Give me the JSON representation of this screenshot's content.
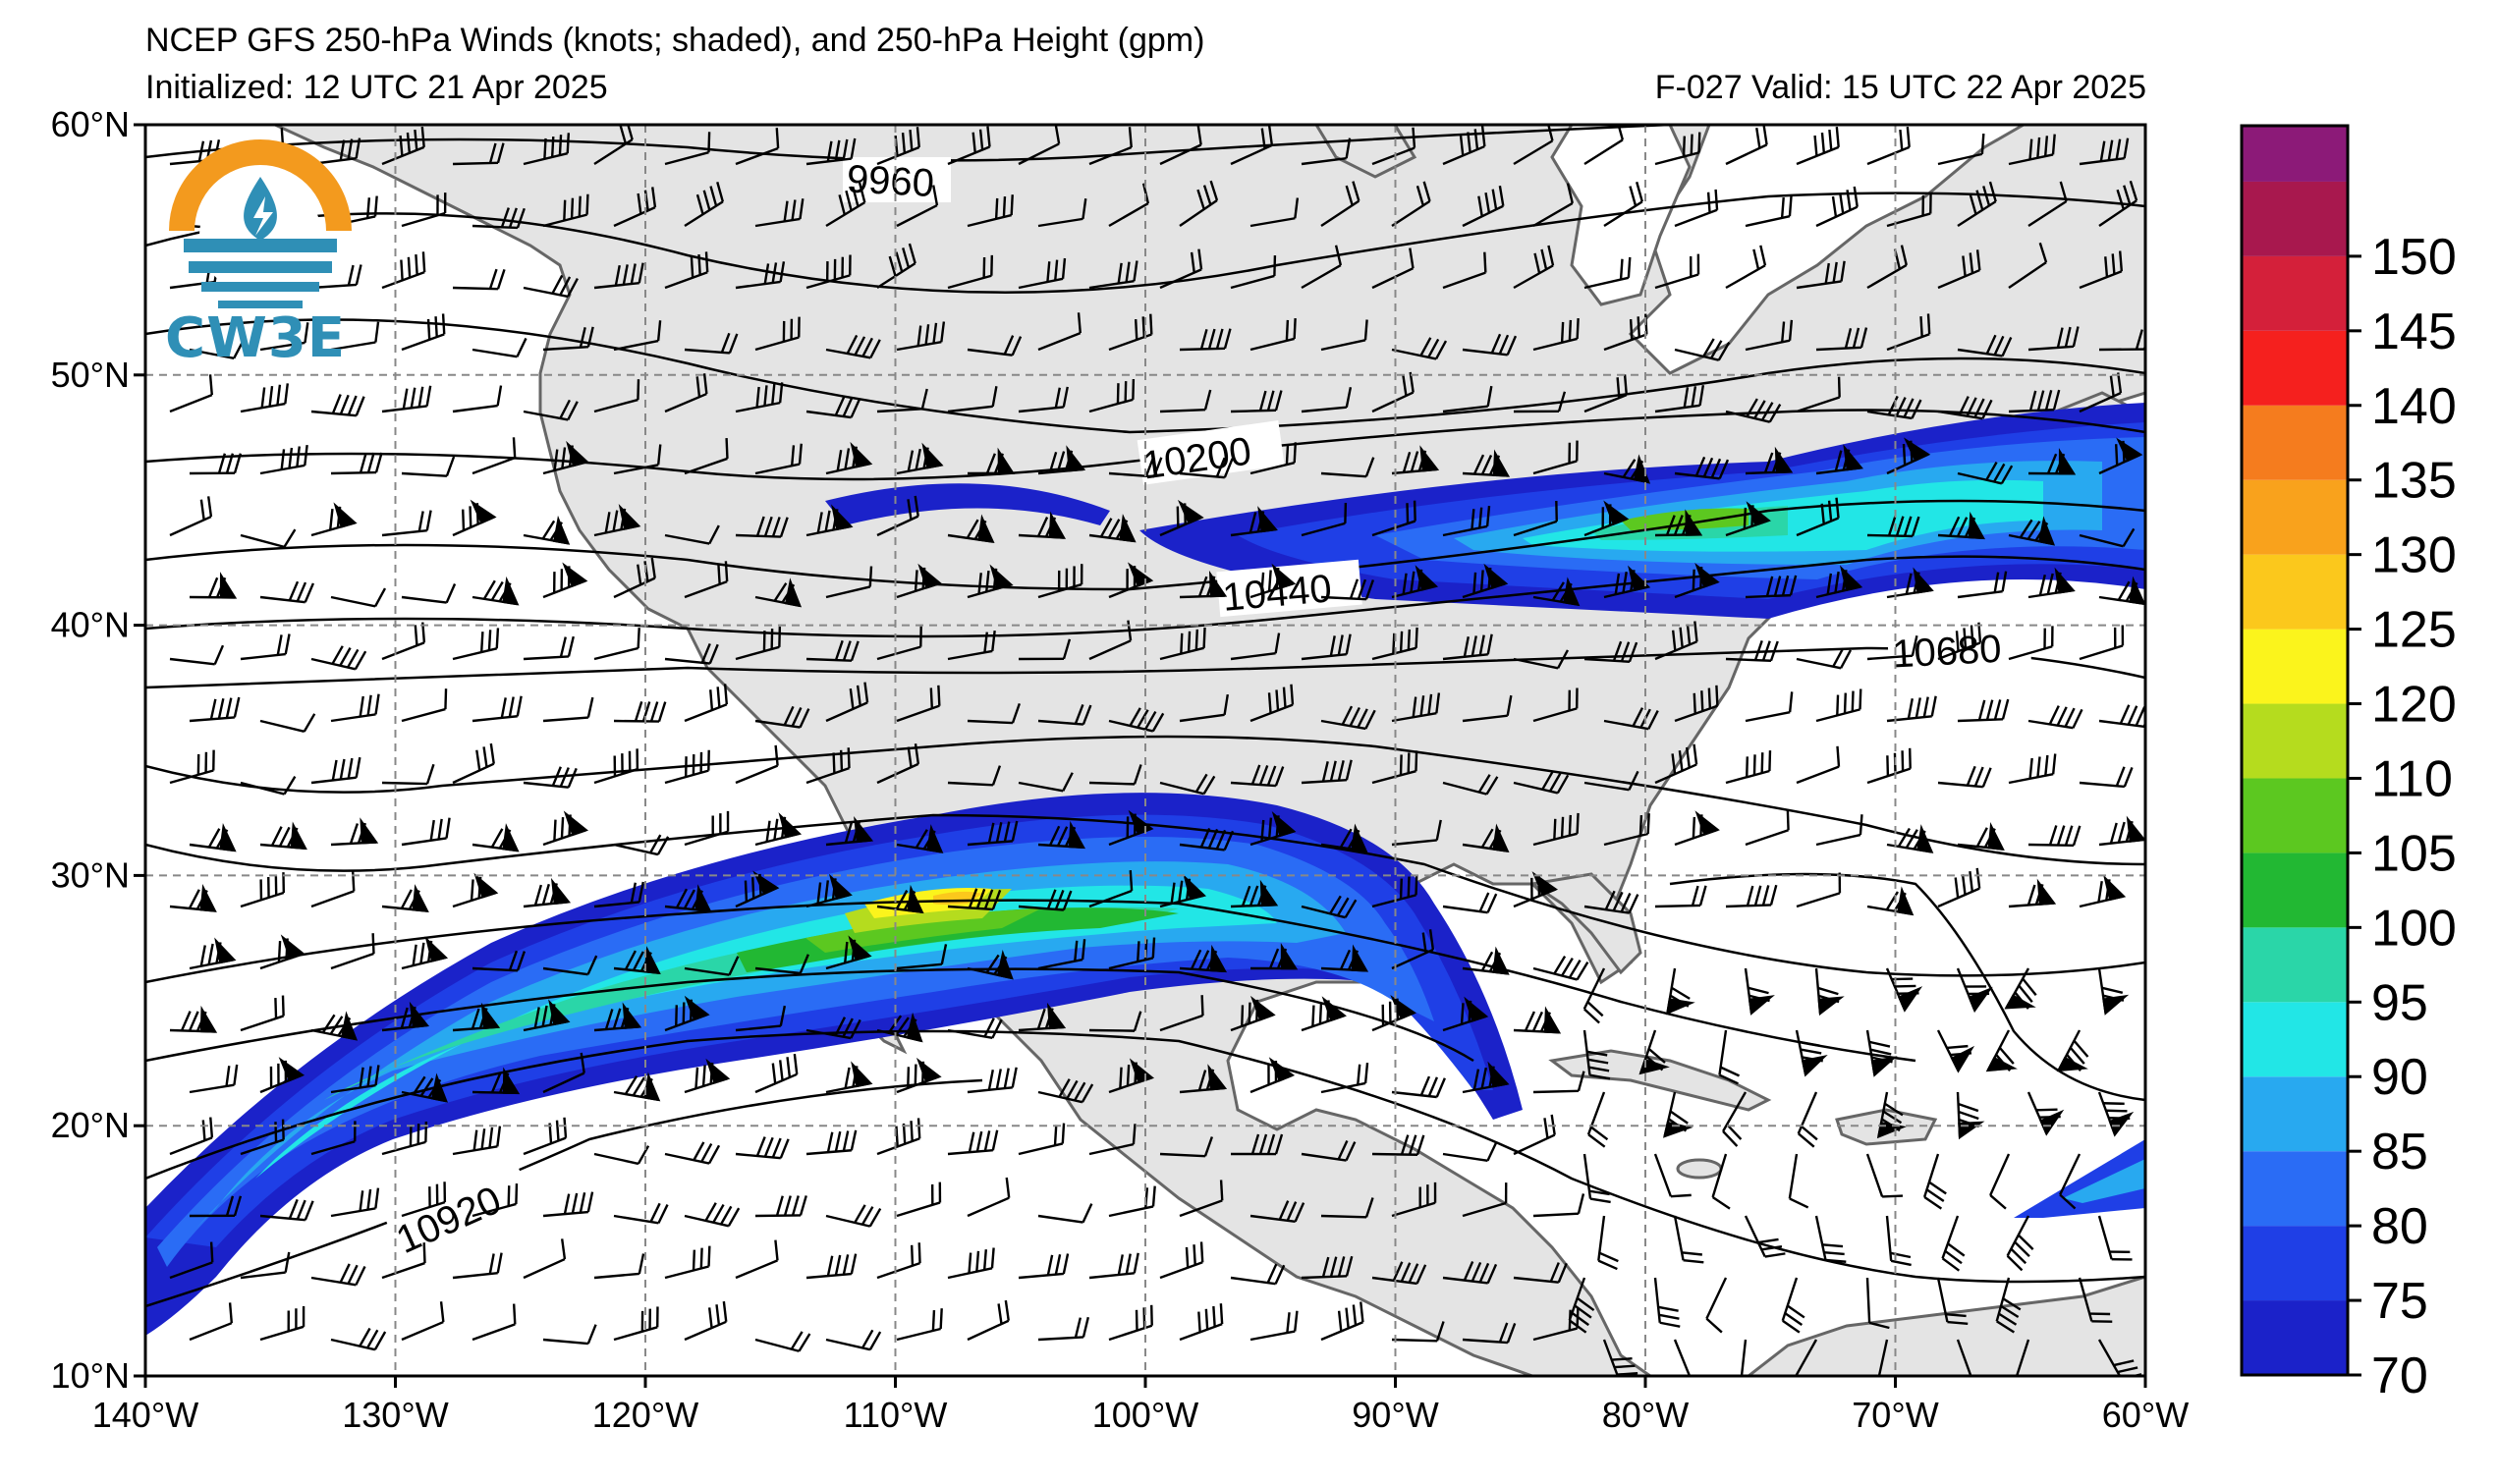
{
  "header": {
    "title_line1": "NCEP GFS 250-hPa Winds (knots; shaded), and 250-hPa Height (gpm)",
    "initialized": "Initialized: 12 UTC 21 Apr 2025",
    "valid": "F-027  Valid: 15 UTC 22 Apr 2025"
  },
  "logo": {
    "text": "CW3E",
    "color": "#2f8fb6",
    "ring_color": "#f39a1e"
  },
  "axes": {
    "lat_labels": [
      "60°N",
      "50°N",
      "40°N",
      "30°N",
      "20°N",
      "10°N"
    ],
    "lon_labels": [
      "140°W",
      "130°W",
      "120°W",
      "110°W",
      "100°W",
      "90°W",
      "80°W",
      "70°W",
      "60°W"
    ],
    "lat_range": [
      10,
      60
    ],
    "lon_range": [
      -140,
      -60
    ]
  },
  "contours": {
    "labels": [
      "9960",
      "10200",
      "10440",
      "10680",
      "10920"
    ]
  },
  "colorbar": {
    "ticks": [
      "70",
      "75",
      "80",
      "85",
      "90",
      "95",
      "100",
      "105",
      "110",
      "120",
      "125",
      "130",
      "135",
      "140",
      "145",
      "150"
    ],
    "colors": [
      "#1b22c9",
      "#1f3fe6",
      "#2a6cf5",
      "#28a9f0",
      "#22e6e6",
      "#2ad6a8",
      "#22b833",
      "#5cc820",
      "#b5dc1e",
      "#fbf41c",
      "#fbc81c",
      "#f9a21c",
      "#f57c1e",
      "#f5201e",
      "#d4203a",
      "#a8184e",
      "#8c1a78",
      "#6a1a8a"
    ]
  },
  "colors": {
    "land": "#e4e4e4",
    "ocean": "#ffffff",
    "coast": "#666666",
    "grid": "#888888"
  }
}
